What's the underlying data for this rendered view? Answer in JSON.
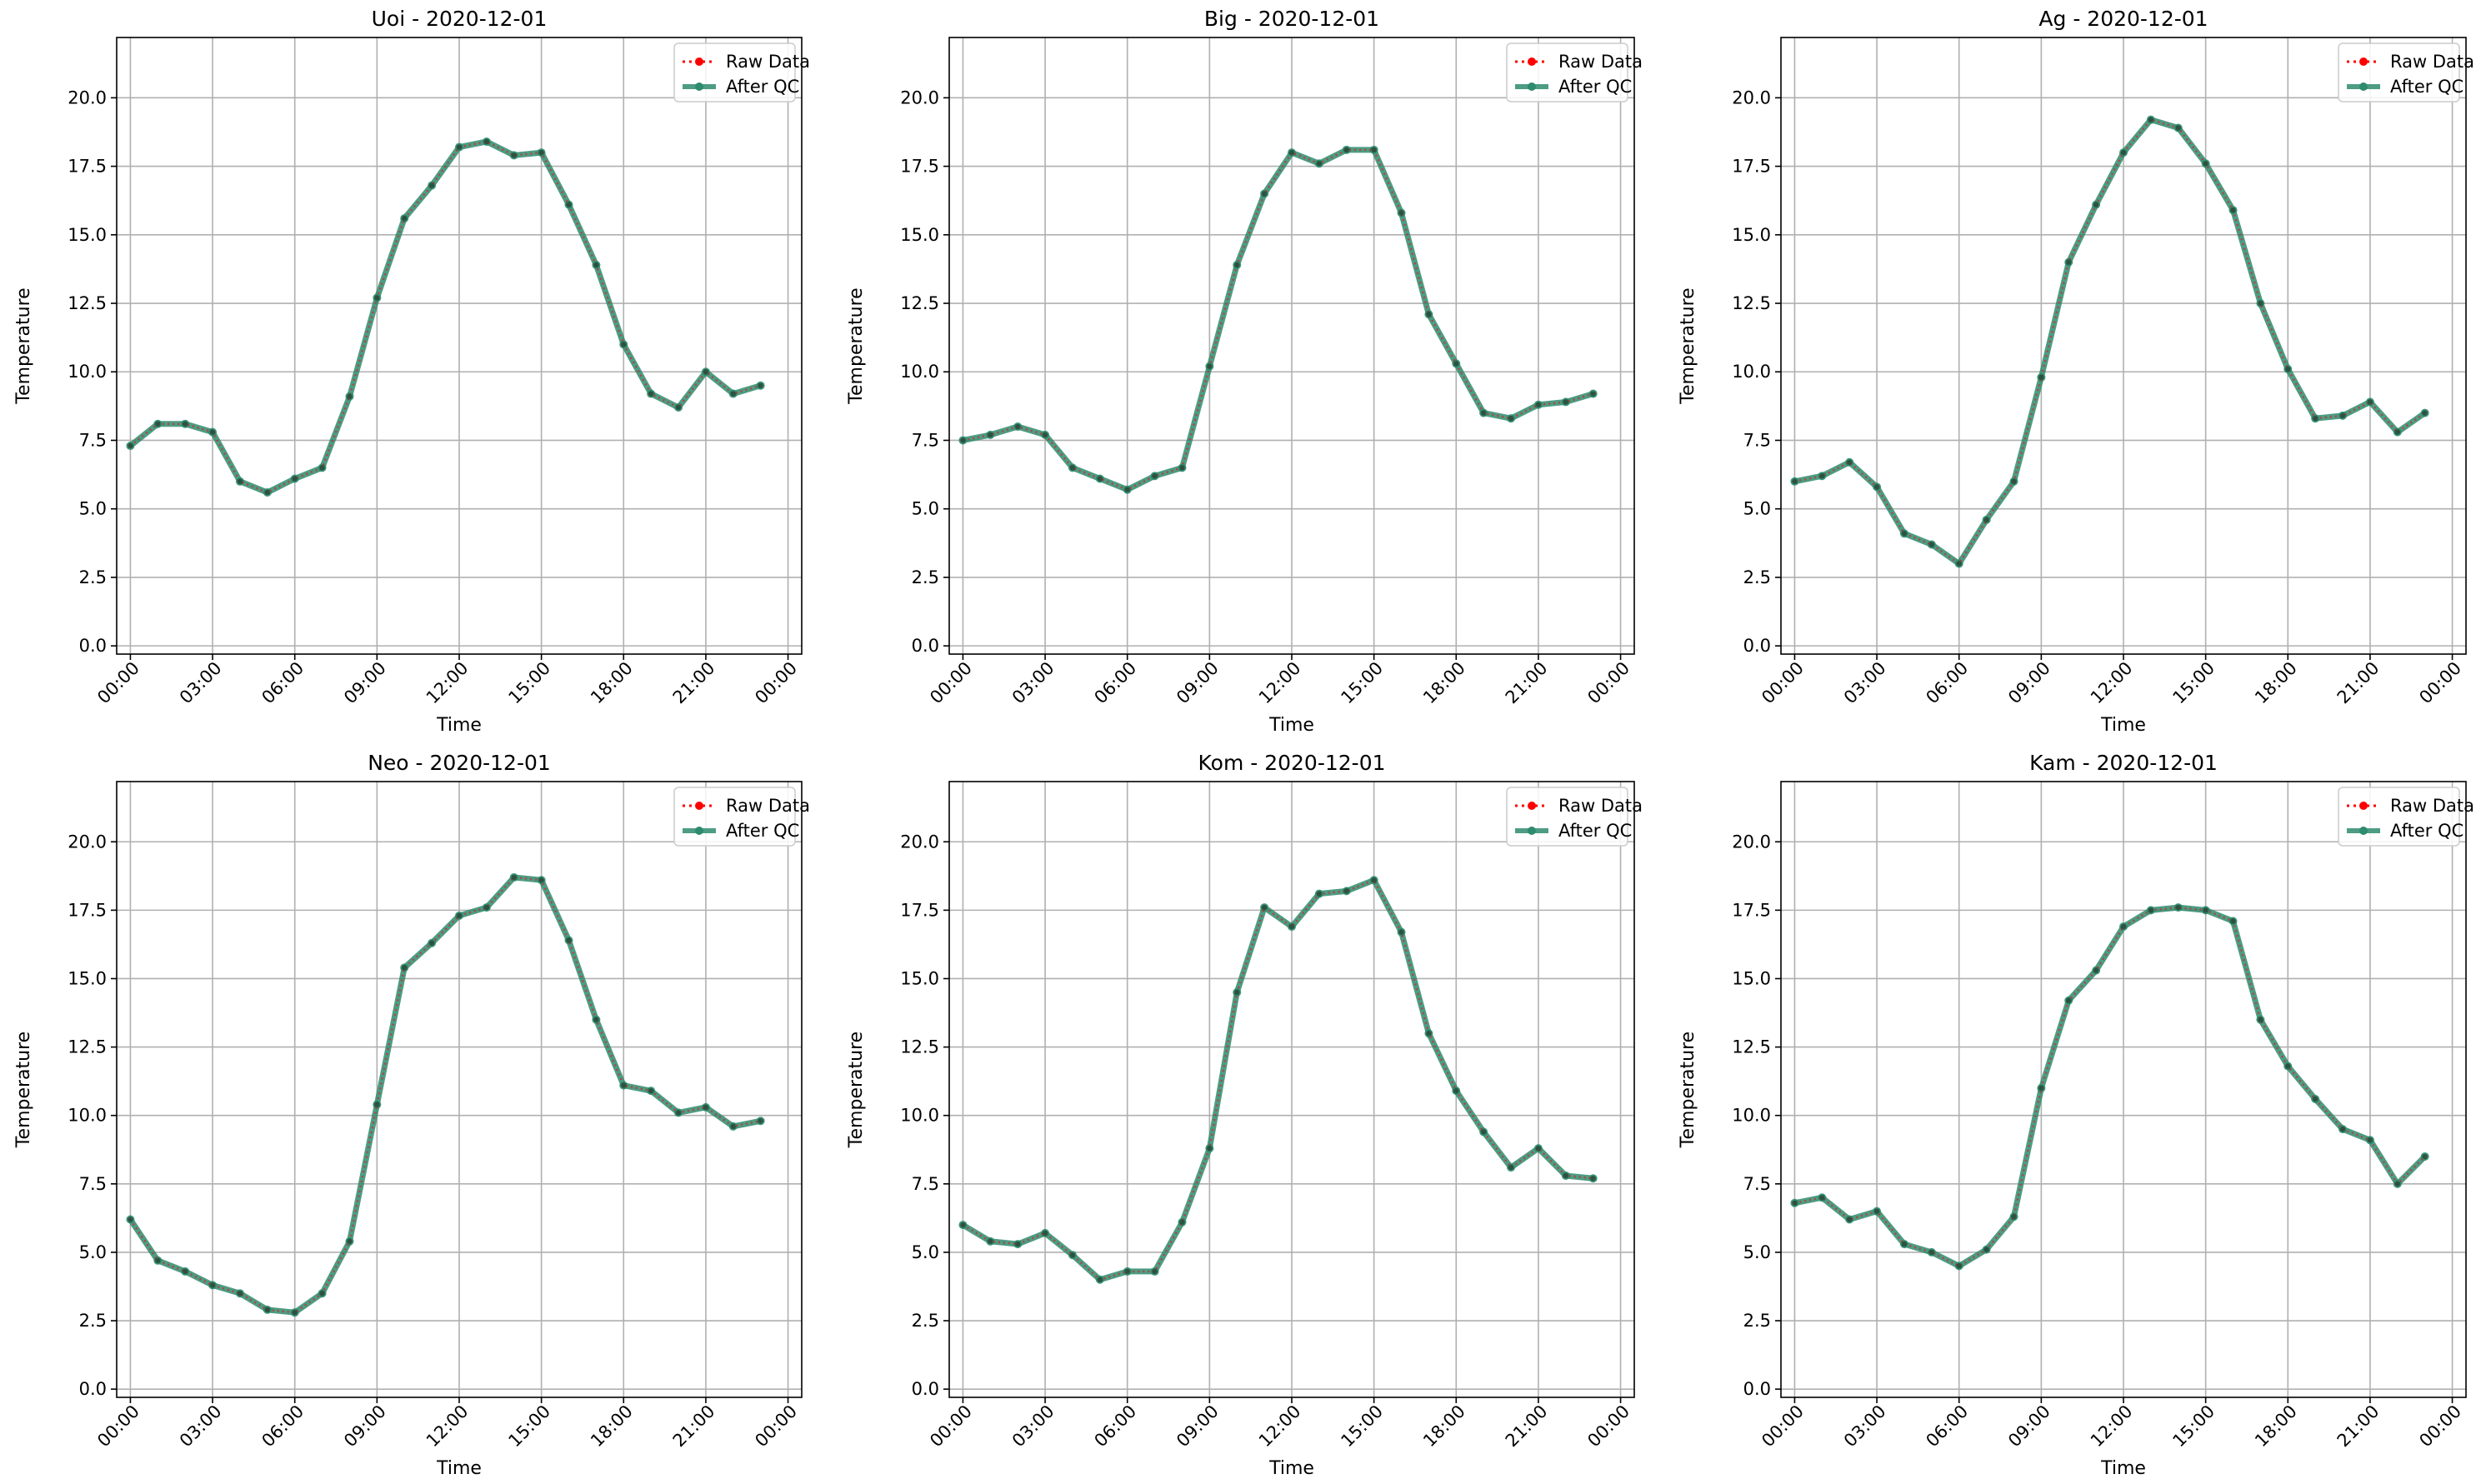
{
  "figure": {
    "background": "#ffffff",
    "grid": true,
    "grid_color": "#b0b0b0",
    "legend_placement": "top-right",
    "legend_entries": [
      {
        "label": "Raw Data",
        "color": "#ff0000",
        "style": "dotted line with circle markers"
      },
      {
        "label": "After QC",
        "color": "#2e8b6e",
        "style": "solid thick line with circle markers"
      }
    ]
  },
  "chart_data": [
    {
      "type": "line",
      "title": "Uoi - 2020-12-01",
      "xlabel": "Time",
      "ylabel": "Temperature",
      "x_tick_labels": [
        "00:00",
        "03:00",
        "06:00",
        "09:00",
        "12:00",
        "15:00",
        "18:00",
        "21:00",
        "00:00"
      ],
      "y_tick_labels": [
        "0.0",
        "2.5",
        "5.0",
        "7.5",
        "10.0",
        "12.5",
        "15.0",
        "17.5",
        "20.0"
      ],
      "xlim": [
        -0.5,
        24.5
      ],
      "ylim": [
        -0.3,
        22.2
      ],
      "x_hours": [
        0,
        1,
        2,
        3,
        4,
        5,
        6,
        7,
        8,
        9,
        10,
        11,
        12,
        13,
        14,
        15,
        16,
        17,
        18,
        19,
        20,
        21,
        22,
        23
      ],
      "series": [
        {
          "name": "Raw Data",
          "values": [
            7.3,
            8.1,
            8.1,
            7.8,
            6.0,
            5.6,
            6.1,
            6.5,
            9.1,
            12.7,
            15.6,
            16.8,
            18.2,
            18.4,
            17.9,
            18.0,
            16.1,
            13.9,
            11.0,
            9.2,
            8.7,
            10.0,
            9.2,
            9.5
          ]
        },
        {
          "name": "After QC",
          "values": [
            7.3,
            8.1,
            8.1,
            7.8,
            6.0,
            5.6,
            6.1,
            6.5,
            9.1,
            12.7,
            15.6,
            16.8,
            18.2,
            18.4,
            17.9,
            18.0,
            16.1,
            13.9,
            11.0,
            9.2,
            8.7,
            10.0,
            9.2,
            9.5
          ]
        }
      ]
    },
    {
      "type": "line",
      "title": "Big - 2020-12-01",
      "xlabel": "Time",
      "ylabel": "Temperature",
      "x_tick_labels": [
        "00:00",
        "03:00",
        "06:00",
        "09:00",
        "12:00",
        "15:00",
        "18:00",
        "21:00",
        "00:00"
      ],
      "y_tick_labels": [
        "0.0",
        "2.5",
        "5.0",
        "7.5",
        "10.0",
        "12.5",
        "15.0",
        "17.5",
        "20.0"
      ],
      "xlim": [
        -0.5,
        24.5
      ],
      "ylim": [
        -0.3,
        22.2
      ],
      "x_hours": [
        0,
        1,
        2,
        3,
        4,
        5,
        6,
        7,
        8,
        9,
        10,
        11,
        12,
        13,
        14,
        15,
        16,
        17,
        18,
        19,
        20,
        21,
        22,
        23
      ],
      "series": [
        {
          "name": "Raw Data",
          "values": [
            7.5,
            7.7,
            8.0,
            7.7,
            6.5,
            6.1,
            5.7,
            6.2,
            6.5,
            10.2,
            13.9,
            16.5,
            18.0,
            17.6,
            18.1,
            18.1,
            15.8,
            12.1,
            10.3,
            8.5,
            8.3,
            8.8,
            8.9,
            9.2
          ]
        },
        {
          "name": "After QC",
          "values": [
            7.5,
            7.7,
            8.0,
            7.7,
            6.5,
            6.1,
            5.7,
            6.2,
            6.5,
            10.2,
            13.9,
            16.5,
            18.0,
            17.6,
            18.1,
            18.1,
            15.8,
            12.1,
            10.3,
            8.5,
            8.3,
            8.8,
            8.9,
            9.2
          ]
        }
      ]
    },
    {
      "type": "line",
      "title": "Ag - 2020-12-01",
      "xlabel": "Time",
      "ylabel": "Temperature",
      "x_tick_labels": [
        "00:00",
        "03:00",
        "06:00",
        "09:00",
        "12:00",
        "15:00",
        "18:00",
        "21:00",
        "00:00"
      ],
      "y_tick_labels": [
        "0.0",
        "2.5",
        "5.0",
        "7.5",
        "10.0",
        "12.5",
        "15.0",
        "17.5",
        "20.0"
      ],
      "xlim": [
        -0.5,
        24.5
      ],
      "ylim": [
        -0.3,
        22.2
      ],
      "x_hours": [
        0,
        1,
        2,
        3,
        4,
        5,
        6,
        7,
        8,
        9,
        10,
        11,
        12,
        13,
        14,
        15,
        16,
        17,
        18,
        19,
        20,
        21,
        22,
        23
      ],
      "series": [
        {
          "name": "Raw Data",
          "values": [
            6.0,
            6.2,
            6.7,
            5.8,
            4.1,
            3.7,
            3.0,
            4.6,
            6.0,
            9.8,
            14.0,
            16.1,
            18.0,
            19.2,
            18.9,
            17.6,
            15.9,
            12.5,
            10.1,
            8.3,
            8.4,
            8.9,
            7.8,
            8.5
          ]
        },
        {
          "name": "After QC",
          "values": [
            6.0,
            6.2,
            6.7,
            5.8,
            4.1,
            3.7,
            3.0,
            4.6,
            6.0,
            9.8,
            14.0,
            16.1,
            18.0,
            19.2,
            18.9,
            17.6,
            15.9,
            12.5,
            10.1,
            8.3,
            8.4,
            8.9,
            7.8,
            8.5
          ]
        }
      ]
    },
    {
      "type": "line",
      "title": "Neo - 2020-12-01",
      "xlabel": "Time",
      "ylabel": "Temperature",
      "x_tick_labels": [
        "00:00",
        "03:00",
        "06:00",
        "09:00",
        "12:00",
        "15:00",
        "18:00",
        "21:00",
        "00:00"
      ],
      "y_tick_labels": [
        "0.0",
        "2.5",
        "5.0",
        "7.5",
        "10.0",
        "12.5",
        "15.0",
        "17.5",
        "20.0"
      ],
      "xlim": [
        -0.5,
        24.5
      ],
      "ylim": [
        -0.3,
        22.2
      ],
      "x_hours": [
        0,
        1,
        2,
        3,
        4,
        5,
        6,
        7,
        8,
        9,
        10,
        11,
        12,
        13,
        14,
        15,
        16,
        17,
        18,
        19,
        20,
        21,
        22,
        23
      ],
      "series": [
        {
          "name": "Raw Data",
          "values": [
            6.2,
            4.7,
            4.3,
            3.8,
            3.5,
            2.9,
            2.8,
            3.5,
            5.4,
            10.4,
            15.4,
            16.3,
            17.3,
            17.6,
            18.7,
            18.6,
            16.4,
            13.5,
            11.1,
            10.9,
            10.1,
            10.3,
            9.6,
            9.8
          ]
        },
        {
          "name": "After QC",
          "values": [
            6.2,
            4.7,
            4.3,
            3.8,
            3.5,
            2.9,
            2.8,
            3.5,
            5.4,
            10.4,
            15.4,
            16.3,
            17.3,
            17.6,
            18.7,
            18.6,
            16.4,
            13.5,
            11.1,
            10.9,
            10.1,
            10.3,
            9.6,
            9.8
          ]
        }
      ]
    },
    {
      "type": "line",
      "title": "Kom - 2020-12-01",
      "xlabel": "Time",
      "ylabel": "Temperature",
      "x_tick_labels": [
        "00:00",
        "03:00",
        "06:00",
        "09:00",
        "12:00",
        "15:00",
        "18:00",
        "21:00",
        "00:00"
      ],
      "y_tick_labels": [
        "0.0",
        "2.5",
        "5.0",
        "7.5",
        "10.0",
        "12.5",
        "15.0",
        "17.5",
        "20.0"
      ],
      "xlim": [
        -0.5,
        24.5
      ],
      "ylim": [
        -0.3,
        22.2
      ],
      "x_hours": [
        0,
        1,
        2,
        3,
        4,
        5,
        6,
        7,
        8,
        9,
        10,
        11,
        12,
        13,
        14,
        15,
        16,
        17,
        18,
        19,
        20,
        21,
        22,
        23
      ],
      "series": [
        {
          "name": "Raw Data",
          "values": [
            6.0,
            5.4,
            5.3,
            5.7,
            4.9,
            4.0,
            4.3,
            4.3,
            6.1,
            8.8,
            14.5,
            17.6,
            16.9,
            18.1,
            18.2,
            18.6,
            16.7,
            13.0,
            10.9,
            9.4,
            8.1,
            8.8,
            7.8,
            7.7
          ]
        },
        {
          "name": "After QC",
          "values": [
            6.0,
            5.4,
            5.3,
            5.7,
            4.9,
            4.0,
            4.3,
            4.3,
            6.1,
            8.8,
            14.5,
            17.6,
            16.9,
            18.1,
            18.2,
            18.6,
            16.7,
            13.0,
            10.9,
            9.4,
            8.1,
            8.8,
            7.8,
            7.7
          ]
        }
      ]
    },
    {
      "type": "line",
      "title": "Kam - 2020-12-01",
      "xlabel": "Time",
      "ylabel": "Temperature",
      "x_tick_labels": [
        "00:00",
        "03:00",
        "06:00",
        "09:00",
        "12:00",
        "15:00",
        "18:00",
        "21:00",
        "00:00"
      ],
      "y_tick_labels": [
        "0.0",
        "2.5",
        "5.0",
        "7.5",
        "10.0",
        "12.5",
        "15.0",
        "17.5",
        "20.0"
      ],
      "xlim": [
        -0.5,
        24.5
      ],
      "ylim": [
        -0.3,
        22.2
      ],
      "x_hours": [
        0,
        1,
        2,
        3,
        4,
        5,
        6,
        7,
        8,
        9,
        10,
        11,
        12,
        13,
        14,
        15,
        16,
        17,
        18,
        19,
        20,
        21,
        22,
        23
      ],
      "series": [
        {
          "name": "Raw Data",
          "values": [
            6.8,
            7.0,
            6.2,
            6.5,
            5.3,
            5.0,
            4.5,
            5.1,
            6.3,
            11.0,
            14.2,
            15.3,
            16.9,
            17.5,
            17.6,
            17.5,
            17.1,
            13.5,
            11.8,
            10.6,
            9.5,
            9.1,
            7.5,
            8.5
          ]
        },
        {
          "name": "After QC",
          "values": [
            6.8,
            7.0,
            6.2,
            6.5,
            5.3,
            5.0,
            4.5,
            5.1,
            6.3,
            11.0,
            14.2,
            15.3,
            16.9,
            17.5,
            17.6,
            17.5,
            17.1,
            13.5,
            11.8,
            10.6,
            9.5,
            9.1,
            7.5,
            8.5
          ]
        }
      ]
    }
  ]
}
